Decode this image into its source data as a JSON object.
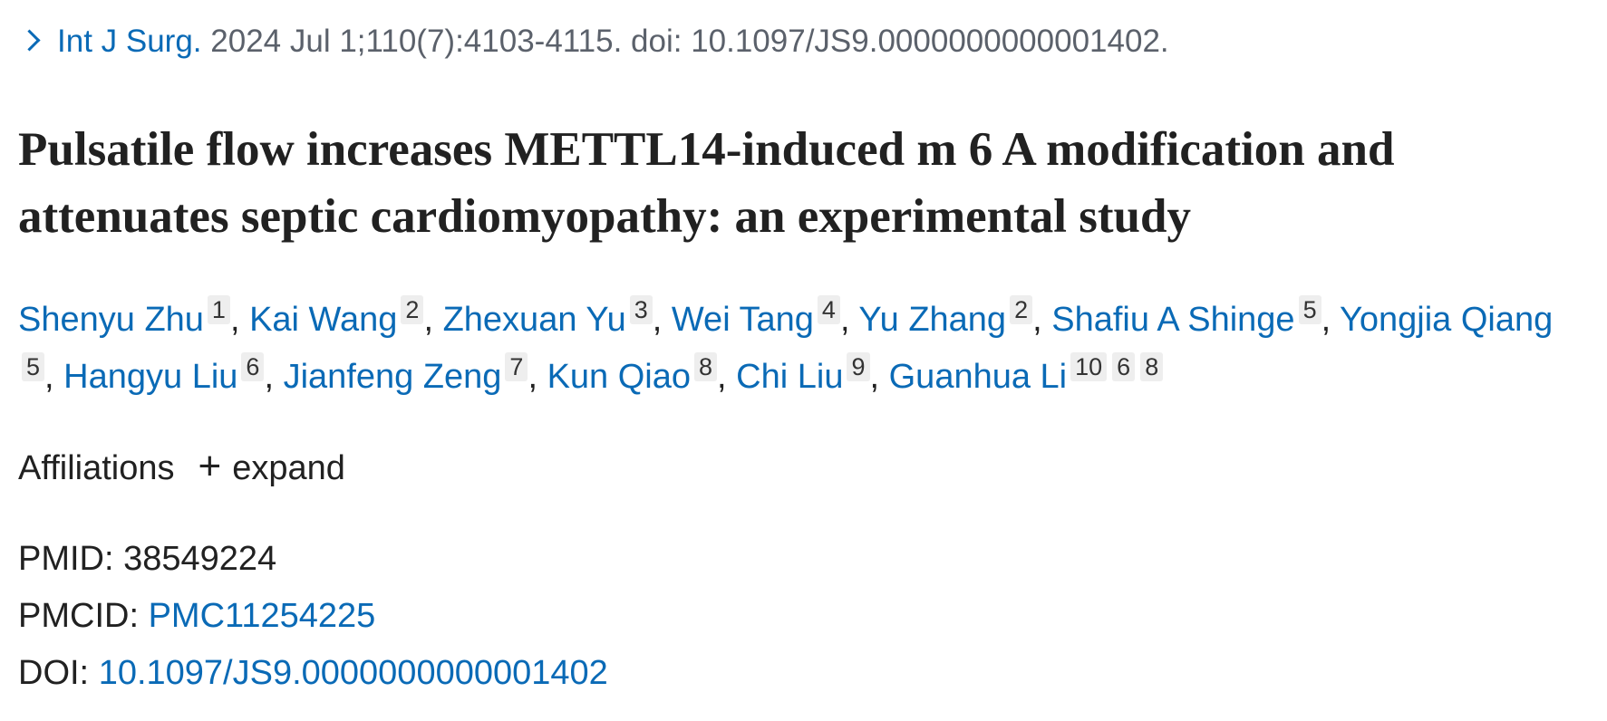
{
  "citation": {
    "journal": "Int J Surg.",
    "details": "2024 Jul 1;110(7):4103-4115. doi: 10.1097/JS9.0000000000001402."
  },
  "title": "Pulsatile flow increases METTL14-induced m 6 A modification and attenuates septic cardiomyopathy: an experimental study",
  "author_separator": ",",
  "authors": [
    {
      "name": "Shenyu Zhu",
      "affiliations": [
        "1"
      ]
    },
    {
      "name": "Kai Wang",
      "affiliations": [
        "2"
      ]
    },
    {
      "name": "Zhexuan Yu",
      "affiliations": [
        "3"
      ]
    },
    {
      "name": "Wei Tang",
      "affiliations": [
        "4"
      ]
    },
    {
      "name": "Yu Zhang",
      "affiliations": [
        "2"
      ]
    },
    {
      "name": "Shafiu A Shinge",
      "affiliations": [
        "5"
      ]
    },
    {
      "name": "Yongjia Qiang",
      "affiliations": [
        "5"
      ]
    },
    {
      "name": "Hangyu Liu",
      "affiliations": [
        "6"
      ]
    },
    {
      "name": "Jianfeng Zeng",
      "affiliations": [
        "7"
      ]
    },
    {
      "name": "Kun Qiao",
      "affiliations": [
        "8"
      ]
    },
    {
      "name": "Chi Liu",
      "affiliations": [
        "9"
      ]
    },
    {
      "name": "Guanhua Li",
      "affiliations": [
        "10",
        "6",
        "8"
      ]
    }
  ],
  "affiliations_label": "Affiliations",
  "expand_label": "expand",
  "identifiers": [
    {
      "label": "PMID:",
      "value": "38549224"
    },
    {
      "label": "PMCID:",
      "value": "PMC11254225"
    },
    {
      "label": "DOI:",
      "value": "10.1097/JS9.0000000000001402"
    }
  ]
}
